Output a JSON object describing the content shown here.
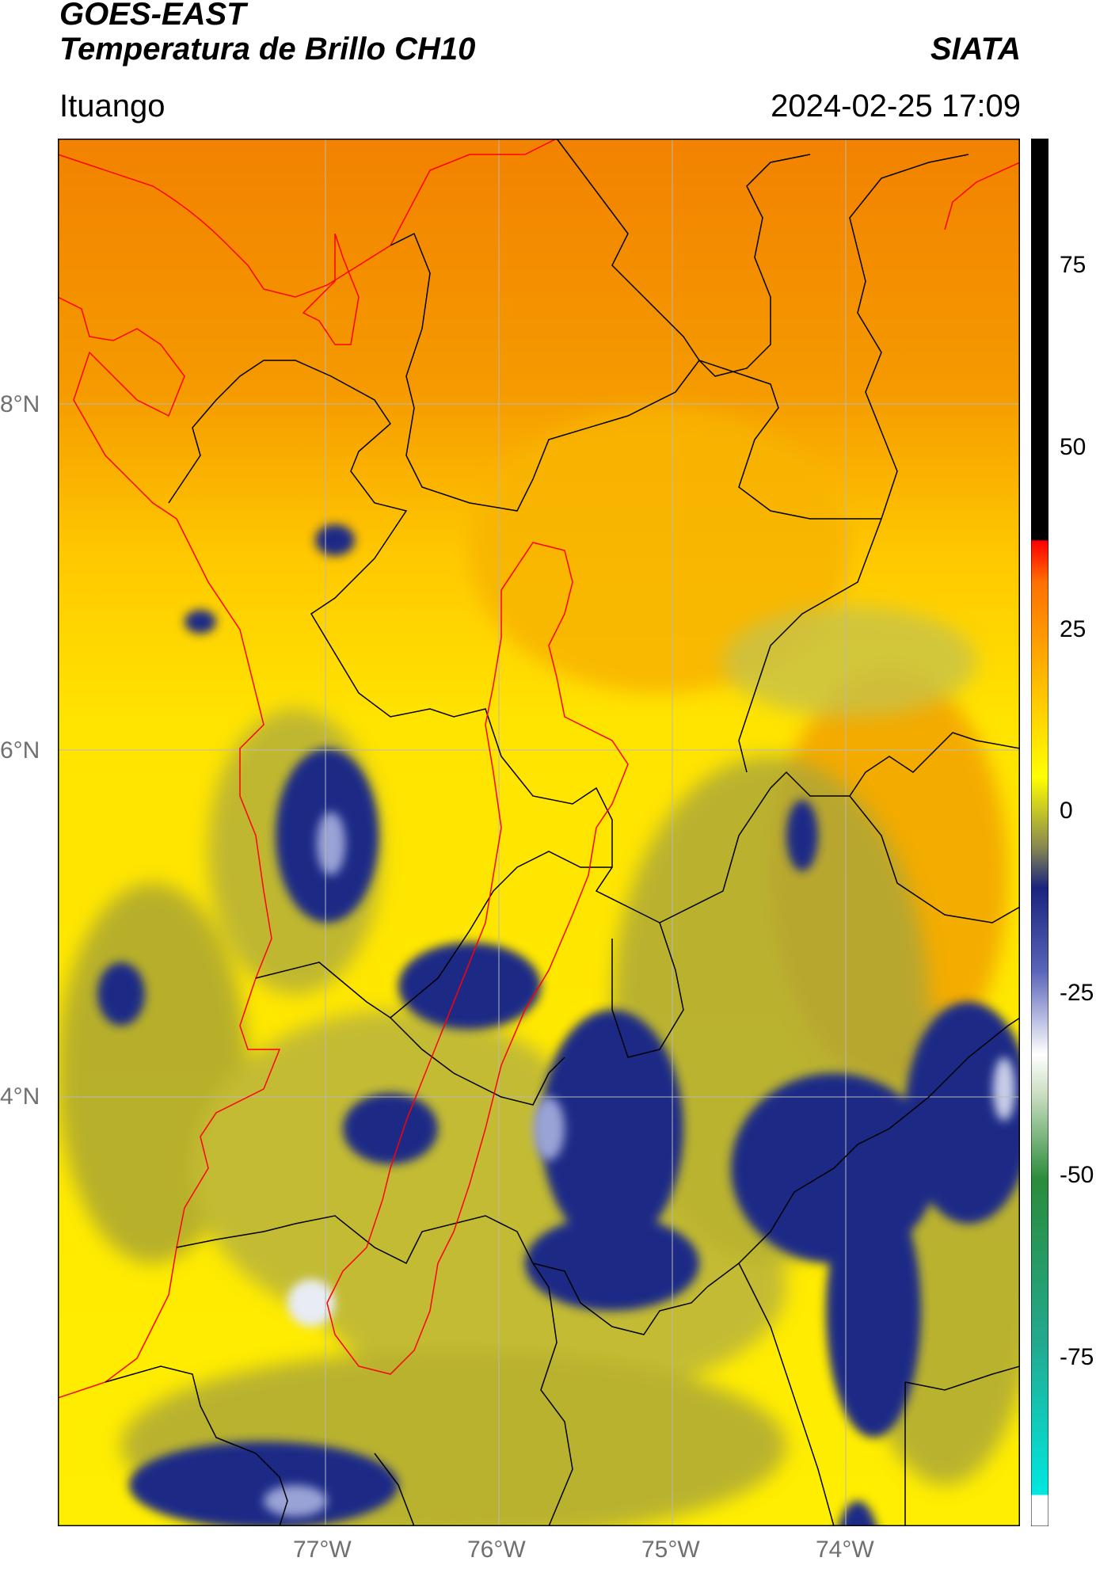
{
  "header": {
    "satellite": "GOES-EAST",
    "product": "Temperatura de Brillo CH10",
    "brand": "SIATA",
    "region": "Ituango",
    "datetime": "2024-02-25 17:09"
  },
  "map": {
    "lat_ticks": [
      "8°N",
      "6°N",
      "4°N"
    ],
    "lon_ticks": [
      "77°W",
      "76°W",
      "75°W",
      "74°W"
    ],
    "colors": {
      "warm_orange": "#f08a00",
      "yellow": "#ffee00",
      "olive": "#a8a43a",
      "navy": "#1c2680",
      "light": "#e8ecf4",
      "border_black": "#000000",
      "border_red": "#ff0000",
      "grid": "#b8b8b8"
    }
  },
  "colorbar": {
    "ticks": [
      "75",
      "50",
      "25",
      "0",
      "-25",
      "-50",
      "-75"
    ],
    "stops": [
      "#ffffff",
      "#00e8e0",
      "#2a8c3a",
      "#d8e8d0",
      "#1a237e",
      "#ffff00",
      "#ff8c00",
      "#ff0000",
      "#000000"
    ]
  }
}
